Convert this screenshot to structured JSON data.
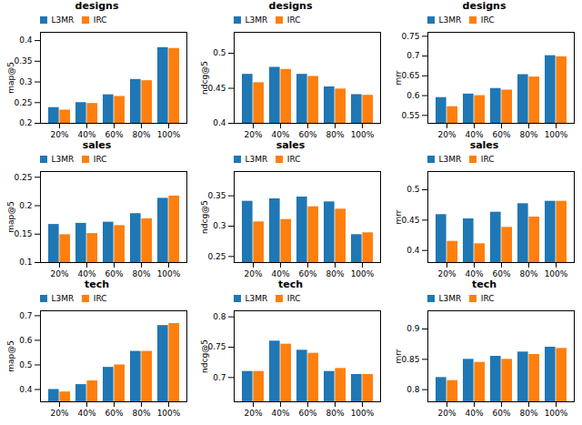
{
  "chart_data": [
    {
      "type": "bar",
      "title": "designs",
      "ylabel": "map@5",
      "categories": [
        "20%",
        "40%",
        "60%",
        "80%",
        "100%"
      ],
      "series": [
        {
          "name": "L3MR",
          "color": "#1f77b4",
          "values": [
            0.238,
            0.25,
            0.269,
            0.306,
            0.383
          ]
        },
        {
          "name": "IRC",
          "color": "#ff7f0e",
          "values": [
            0.232,
            0.248,
            0.265,
            0.303,
            0.381
          ]
        }
      ],
      "ylim": [
        0.2,
        0.42
      ],
      "yticks": [
        0.2,
        0.25,
        0.3,
        0.35,
        0.4
      ],
      "legend": "upper left",
      "grid": false
    },
    {
      "type": "bar",
      "title": "designs",
      "ylabel": "ndcg@5",
      "categories": [
        "20%",
        "40%",
        "60%",
        "80%",
        "100%"
      ],
      "series": [
        {
          "name": "L3MR",
          "color": "#1f77b4",
          "values": [
            0.47,
            0.48,
            0.47,
            0.452,
            0.441
          ]
        },
        {
          "name": "IRC",
          "color": "#ff7f0e",
          "values": [
            0.458,
            0.477,
            0.467,
            0.449,
            0.44
          ]
        }
      ],
      "ylim": [
        0.4,
        0.53
      ],
      "yticks": [
        0.4,
        0.45,
        0.5
      ],
      "legend": "upper left",
      "grid": false
    },
    {
      "type": "bar",
      "title": "designs",
      "ylabel": "mrr",
      "categories": [
        "20%",
        "40%",
        "60%",
        "80%",
        "100%"
      ],
      "series": [
        {
          "name": "L3MR",
          "color": "#1f77b4",
          "values": [
            0.595,
            0.604,
            0.618,
            0.653,
            0.701
          ]
        },
        {
          "name": "IRC",
          "color": "#ff7f0e",
          "values": [
            0.572,
            0.6,
            0.614,
            0.647,
            0.698
          ]
        }
      ],
      "ylim": [
        0.53,
        0.76
      ],
      "yticks": [
        0.55,
        0.6,
        0.65,
        0.7,
        0.75
      ],
      "legend": "upper left",
      "grid": false
    },
    {
      "type": "bar",
      "title": "sales",
      "ylabel": "map@5",
      "categories": [
        "20%",
        "40%",
        "60%",
        "80%",
        "100%"
      ],
      "series": [
        {
          "name": "L3MR",
          "color": "#1f77b4",
          "values": [
            0.167,
            0.169,
            0.171,
            0.186,
            0.213
          ]
        },
        {
          "name": "IRC",
          "color": "#ff7f0e",
          "values": [
            0.149,
            0.151,
            0.165,
            0.177,
            0.217
          ]
        }
      ],
      "ylim": [
        0.1,
        0.26
      ],
      "yticks": [
        0.1,
        0.15,
        0.2,
        0.25
      ],
      "legend": "upper left",
      "grid": false
    },
    {
      "type": "bar",
      "title": "sales",
      "ylabel": "ndcg@5",
      "categories": [
        "20%",
        "40%",
        "60%",
        "80%",
        "100%"
      ],
      "series": [
        {
          "name": "L3MR",
          "color": "#1f77b4",
          "values": [
            0.341,
            0.345,
            0.348,
            0.34,
            0.286
          ]
        },
        {
          "name": "IRC",
          "color": "#ff7f0e",
          "values": [
            0.307,
            0.311,
            0.332,
            0.328,
            0.289
          ]
        }
      ],
      "ylim": [
        0.24,
        0.39
      ],
      "yticks": [
        0.25,
        0.3,
        0.35
      ],
      "legend": "upper left",
      "grid": false
    },
    {
      "type": "bar",
      "title": "sales",
      "ylabel": "mrr",
      "categories": [
        "20%",
        "40%",
        "60%",
        "80%",
        "100%"
      ],
      "series": [
        {
          "name": "L3MR",
          "color": "#1f77b4",
          "values": [
            0.459,
            0.452,
            0.463,
            0.477,
            0.481
          ]
        },
        {
          "name": "IRC",
          "color": "#ff7f0e",
          "values": [
            0.415,
            0.411,
            0.438,
            0.455,
            0.481
          ]
        }
      ],
      "ylim": [
        0.38,
        0.53
      ],
      "yticks": [
        0.4,
        0.45,
        0.5
      ],
      "legend": "upper left",
      "grid": false
    },
    {
      "type": "bar",
      "title": "tech",
      "ylabel": "map@5",
      "categories": [
        "20%",
        "40%",
        "60%",
        "80%",
        "100%"
      ],
      "series": [
        {
          "name": "L3MR",
          "color": "#1f77b4",
          "values": [
            0.4,
            0.42,
            0.49,
            0.555,
            0.66
          ]
        },
        {
          "name": "IRC",
          "color": "#ff7f0e",
          "values": [
            0.39,
            0.435,
            0.5,
            0.555,
            0.668
          ]
        }
      ],
      "ylim": [
        0.35,
        0.72
      ],
      "yticks": [
        0.4,
        0.5,
        0.6,
        0.7
      ],
      "legend": "upper left",
      "grid": false
    },
    {
      "type": "bar",
      "title": "tech",
      "ylabel": "ndcg@5",
      "categories": [
        "20%",
        "40%",
        "60%",
        "80%",
        "100%"
      ],
      "series": [
        {
          "name": "L3MR",
          "color": "#1f77b4",
          "values": [
            0.71,
            0.76,
            0.745,
            0.71,
            0.705
          ]
        },
        {
          "name": "IRC",
          "color": "#ff7f0e",
          "values": [
            0.71,
            0.755,
            0.74,
            0.715,
            0.705
          ]
        }
      ],
      "ylim": [
        0.66,
        0.81
      ],
      "yticks": [
        0.7,
        0.75,
        0.8
      ],
      "legend": "upper left",
      "grid": false
    },
    {
      "type": "bar",
      "title": "tech",
      "ylabel": "mrr",
      "categories": [
        "20%",
        "40%",
        "60%",
        "80%",
        "100%"
      ],
      "series": [
        {
          "name": "L3MR",
          "color": "#1f77b4",
          "values": [
            0.82,
            0.85,
            0.855,
            0.862,
            0.87
          ]
        },
        {
          "name": "IRC",
          "color": "#ff7f0e",
          "values": [
            0.815,
            0.845,
            0.85,
            0.858,
            0.868
          ]
        }
      ],
      "ylim": [
        0.78,
        0.93
      ],
      "yticks": [
        0.8,
        0.85,
        0.9
      ],
      "legend": "upper left",
      "grid": false
    }
  ]
}
